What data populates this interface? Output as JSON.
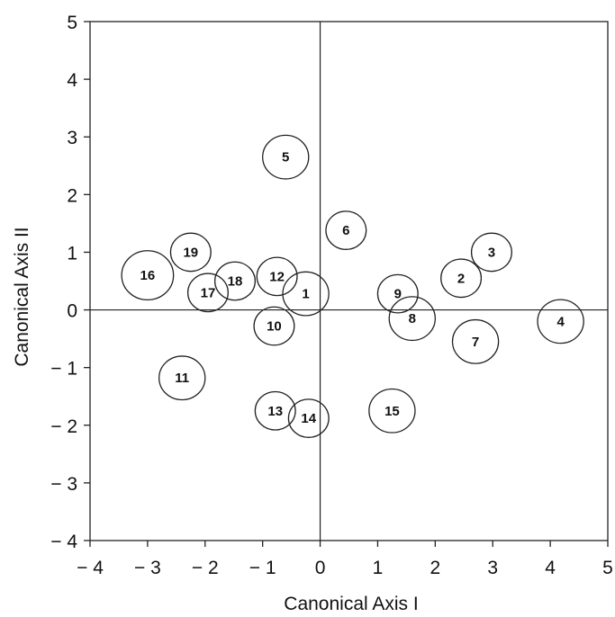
{
  "chart_data": {
    "type": "scatter",
    "title": "",
    "xlabel": "Canonical Axis I",
    "ylabel": "Canonical Axis II",
    "xlim": [
      -4,
      5
    ],
    "ylim": [
      -4,
      5
    ],
    "grid": false,
    "x_ticks": [
      -4,
      -3,
      -2,
      -1,
      0,
      1,
      2,
      3,
      4,
      5
    ],
    "y_ticks": [
      -4,
      -3,
      -2,
      -1,
      0,
      1,
      2,
      3,
      4,
      5
    ],
    "x_tick_labels": [
      "− 4",
      "− 3",
      "− 2",
      "− 1",
      "0",
      "1",
      "2",
      "3",
      "4",
      "5"
    ],
    "y_tick_labels": [
      "− 4",
      "− 3",
      "− 2",
      "− 1",
      "0",
      "1",
      "2",
      "3",
      "4",
      "5"
    ],
    "reference_lines": {
      "x": 0,
      "y": 0
    },
    "points": [
      {
        "label": "1",
        "x": -0.25,
        "y": 0.28,
        "r": 0.4
      },
      {
        "label": "2",
        "x": 2.45,
        "y": 0.55,
        "r": 0.35
      },
      {
        "label": "3",
        "x": 2.98,
        "y": 1.0,
        "r": 0.35
      },
      {
        "label": "4",
        "x": 4.18,
        "y": -0.2,
        "r": 0.4
      },
      {
        "label": "5",
        "x": -0.6,
        "y": 2.65,
        "r": 0.4
      },
      {
        "label": "6",
        "x": 0.45,
        "y": 1.38,
        "r": 0.35
      },
      {
        "label": "7",
        "x": 2.7,
        "y": -0.55,
        "r": 0.4
      },
      {
        "label": "8",
        "x": 1.6,
        "y": -0.15,
        "r": 0.4
      },
      {
        "label": "9",
        "x": 1.35,
        "y": 0.28,
        "r": 0.35
      },
      {
        "label": "10",
        "x": -0.8,
        "y": -0.28,
        "r": 0.35
      },
      {
        "label": "11",
        "x": -2.4,
        "y": -1.18,
        "r": 0.4
      },
      {
        "label": "12",
        "x": -0.75,
        "y": 0.58,
        "r": 0.35
      },
      {
        "label": "13",
        "x": -0.78,
        "y": -1.75,
        "r": 0.35
      },
      {
        "label": "14",
        "x": -0.2,
        "y": -1.88,
        "r": 0.35
      },
      {
        "label": "15",
        "x": 1.25,
        "y": -1.75,
        "r": 0.4
      },
      {
        "label": "16",
        "x": -3.0,
        "y": 0.6,
        "r": 0.45
      },
      {
        "label": "17",
        "x": -1.95,
        "y": 0.3,
        "r": 0.35
      },
      {
        "label": "18",
        "x": -1.48,
        "y": 0.5,
        "r": 0.35
      },
      {
        "label": "19",
        "x": -2.25,
        "y": 1.0,
        "r": 0.35
      }
    ]
  }
}
